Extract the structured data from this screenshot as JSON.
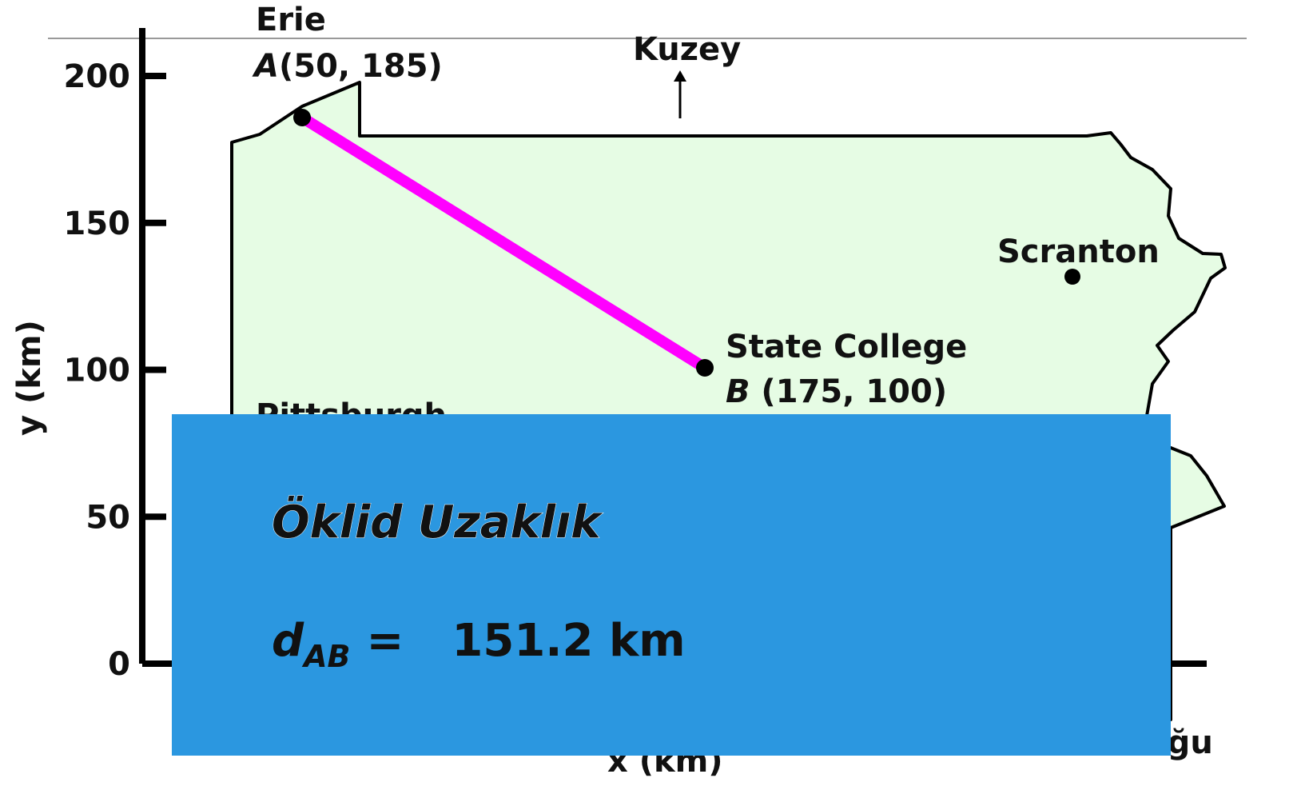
{
  "axis": {
    "label": "y (km)",
    "yticks": [
      200,
      150,
      100,
      50,
      0
    ],
    "x_label": "x (km)"
  },
  "compass": {
    "north": "Kuzey",
    "east": "Doğu"
  },
  "cities": {
    "erie": {
      "name": "Erie",
      "letter": "A",
      "coords": "(50, 185)"
    },
    "state_college": {
      "name": "State College",
      "letter": "B",
      "coords": " (175, 100)"
    },
    "scranton": {
      "name": "Scranton"
    },
    "pittsburgh": {
      "name": "Pittsburgh"
    }
  },
  "box": {
    "title": "Öklid Uzaklık",
    "symbol": "d",
    "subscript": "AB",
    "equals": "=",
    "result": "151.2 km"
  }
}
